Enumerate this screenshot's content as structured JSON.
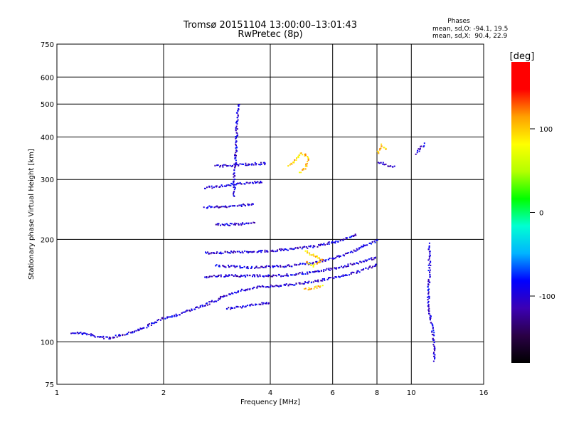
{
  "chart_data": {
    "type": "scatter",
    "title": "Tromsø 20151104 13:00:00–13:01:43",
    "subtitle": "RwPretec (8p)",
    "xlabel": "Frequency [MHz]",
    "ylabel": "Stationary phase Virtual Height [km]",
    "x_scale": "log",
    "y_scale": "log",
    "xlim": [
      1,
      16
    ],
    "ylim": [
      75,
      750
    ],
    "x_ticks": [
      1,
      2,
      4,
      6,
      8,
      10,
      16
    ],
    "y_ticks": [
      75,
      100,
      200,
      300,
      400,
      500,
      600,
      750
    ],
    "grid": true,
    "stats": {
      "heading": "Phases",
      "line_o": "mean, sd,O: -94.1, 19.5",
      "line_x": "mean, sd,X:  90.4, 22.9"
    },
    "colorbar": {
      "label": "[deg]",
      "ticks": [
        100,
        0,
        -100
      ],
      "range": [
        -180,
        180
      ],
      "colors": [
        "#000000",
        "#2a0046",
        "#3c00b4",
        "#0000ff",
        "#00b4ff",
        "#00ffd2",
        "#00ff00",
        "#b4ff00",
        "#ffff00",
        "#ffa000",
        "#ff0000",
        "#ff0000"
      ]
    },
    "traces": [
      {
        "name": "",
        "phase": -100,
        "points": [
          [
            1.1,
            107
          ],
          [
            1.2,
            106
          ],
          [
            1.3,
            104
          ],
          [
            1.4,
            103
          ],
          [
            1.5,
            105
          ],
          [
            1.6,
            107
          ],
          [
            1.7,
            109
          ],
          [
            1.8,
            112
          ],
          [
            1.9,
            115
          ],
          [
            2.0,
            118
          ],
          [
            2.2,
            121
          ],
          [
            2.4,
            125
          ],
          [
            2.6,
            129
          ],
          [
            2.8,
            133
          ],
          [
            3.0,
            138
          ]
        ]
      },
      {
        "name": "",
        "phase": -100,
        "points": [
          [
            3.0,
            138
          ],
          [
            3.2,
            141
          ],
          [
            3.5,
            144
          ],
          [
            3.8,
            146
          ],
          [
            4.2,
            147
          ],
          [
            4.6,
            148
          ],
          [
            5.0,
            150
          ],
          [
            5.5,
            152
          ],
          [
            6.0,
            155
          ],
          [
            6.5,
            158
          ],
          [
            7.0,
            161
          ],
          [
            7.5,
            165
          ],
          [
            8.0,
            170
          ]
        ]
      },
      {
        "name": "",
        "phase": -100,
        "points": [
          [
            2.6,
            156
          ],
          [
            3.0,
            157
          ],
          [
            3.5,
            157
          ],
          [
            4.0,
            157
          ],
          [
            4.5,
            158
          ],
          [
            5.0,
            160
          ],
          [
            5.5,
            162
          ],
          [
            6.0,
            165
          ],
          [
            6.5,
            168
          ],
          [
            7.0,
            171
          ],
          [
            7.5,
            175
          ],
          [
            8.0,
            178
          ]
        ]
      },
      {
        "name": "",
        "phase": -100,
        "points": [
          [
            2.8,
            168
          ],
          [
            3.2,
            167
          ],
          [
            3.6,
            166
          ],
          [
            4.0,
            167
          ],
          [
            4.5,
            168
          ],
          [
            5.0,
            170
          ],
          [
            5.5,
            173
          ],
          [
            6.0,
            177
          ],
          [
            6.5,
            182
          ],
          [
            7.0,
            188
          ],
          [
            7.5,
            194
          ],
          [
            8.0,
            200
          ]
        ]
      },
      {
        "name": "",
        "phase": -100,
        "points": [
          [
            2.6,
            183
          ],
          [
            3.0,
            184
          ],
          [
            3.5,
            185
          ],
          [
            4.0,
            186
          ],
          [
            4.5,
            188
          ],
          [
            5.0,
            190
          ],
          [
            5.5,
            193
          ],
          [
            6.0,
            197
          ],
          [
            6.5,
            202
          ],
          [
            7.0,
            207
          ]
        ]
      },
      {
        "name": "",
        "phase": -100,
        "points": [
          [
            3.0,
            126
          ],
          [
            3.3,
            127
          ],
          [
            3.6,
            129
          ],
          [
            4.0,
            131
          ]
        ]
      },
      {
        "name": "",
        "phase": -100,
        "points": [
          [
            2.6,
            285
          ],
          [
            2.8,
            287
          ],
          [
            3.0,
            290
          ],
          [
            3.2,
            293
          ],
          [
            3.5,
            295
          ],
          [
            3.8,
            297
          ]
        ]
      },
      {
        "name": "",
        "phase": -100,
        "points": [
          [
            2.6,
            250
          ],
          [
            2.8,
            250
          ],
          [
            3.0,
            251
          ],
          [
            3.3,
            253
          ],
          [
            3.6,
            255
          ]
        ]
      },
      {
        "name": "",
        "phase": -100,
        "points": [
          [
            2.8,
            330
          ],
          [
            3.0,
            331
          ],
          [
            3.3,
            333
          ],
          [
            3.6,
            335
          ],
          [
            3.9,
            336
          ]
        ]
      },
      {
        "name": "",
        "phase": -100,
        "points": [
          [
            2.8,
            222
          ],
          [
            3.0,
            222
          ],
          [
            3.3,
            223
          ],
          [
            3.6,
            225
          ]
        ]
      },
      {
        "name": "",
        "phase": -100,
        "points": [
          [
            3.15,
            270
          ],
          [
            3.15,
            310
          ],
          [
            3.18,
            350
          ],
          [
            3.2,
            390
          ],
          [
            3.2,
            430
          ],
          [
            3.22,
            470
          ],
          [
            3.25,
            505
          ]
        ]
      },
      {
        "name": "",
        "phase": 100,
        "points": [
          [
            4.5,
            330
          ],
          [
            4.7,
            345
          ],
          [
            4.9,
            360
          ],
          [
            5.1,
            350
          ],
          [
            5.0,
            325
          ],
          [
            4.8,
            315
          ]
        ]
      },
      {
        "name": "",
        "phase": 100,
        "points": [
          [
            5.0,
            185
          ],
          [
            5.3,
            180
          ],
          [
            5.6,
            175
          ],
          [
            5.3,
            168
          ],
          [
            5.0,
            172
          ]
        ]
      },
      {
        "name": "",
        "phase": 100,
        "points": [
          [
            5.0,
            143
          ],
          [
            5.3,
            145
          ],
          [
            5.6,
            147
          ]
        ]
      },
      {
        "name": "",
        "phase": -100,
        "points": [
          [
            8.0,
            340
          ],
          [
            8.3,
            335
          ],
          [
            8.6,
            330
          ],
          [
            9.0,
            330
          ]
        ]
      },
      {
        "name": "",
        "phase": 100,
        "points": [
          [
            8.0,
            360
          ],
          [
            8.2,
            380
          ],
          [
            8.5,
            370
          ]
        ]
      },
      {
        "name": "",
        "phase": -100,
        "points": [
          [
            10.3,
            360
          ],
          [
            10.6,
            375
          ],
          [
            10.9,
            385
          ]
        ]
      },
      {
        "name": "",
        "phase": -100,
        "points": [
          [
            11.2,
            195
          ],
          [
            11.2,
            160
          ],
          [
            11.1,
            130
          ],
          [
            11.5,
            105
          ],
          [
            11.6,
            88
          ]
        ]
      }
    ]
  }
}
